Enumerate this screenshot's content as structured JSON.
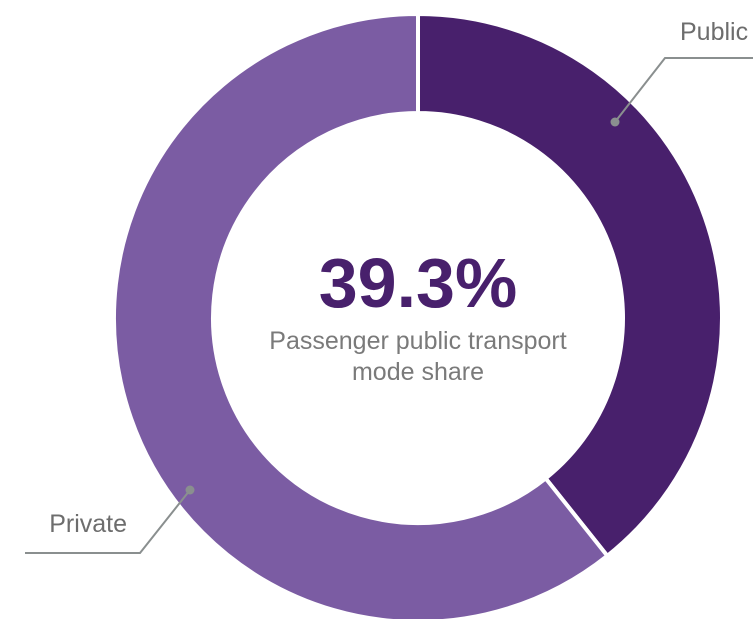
{
  "chart_data": {
    "type": "pie",
    "categories": [
      "Public",
      "Private"
    ],
    "values": [
      39.3,
      60.7
    ],
    "value_labels": [
      "39.3%",
      null
    ],
    "colors": [
      "#48206c",
      "#7b5ca3"
    ],
    "subtitle": "Passenger public transport mode share"
  }
}
